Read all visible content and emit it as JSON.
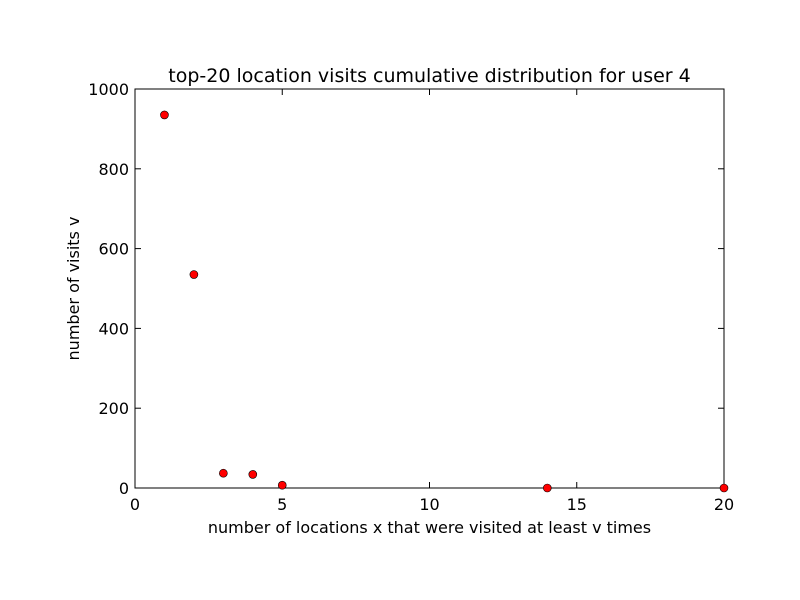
{
  "chart_data": {
    "type": "scatter",
    "title": "top-20 location visits cumulative distribution for user 4",
    "xlabel": "number of locations x that were visited at least v times",
    "ylabel": "number of visits  v",
    "xlim": [
      0,
      20
    ],
    "ylim": [
      0,
      1000
    ],
    "xticks": [
      0,
      5,
      10,
      15,
      20
    ],
    "yticks": [
      0,
      200,
      400,
      600,
      800,
      1000
    ],
    "grid": false,
    "legend": "none",
    "marker_color": "#ff0000",
    "marker_edge_color": "#000000",
    "series": [
      {
        "x": [
          1,
          2,
          3,
          4,
          5,
          14,
          20
        ],
        "y": [
          935,
          535,
          37,
          34,
          7,
          0,
          0
        ]
      }
    ]
  }
}
